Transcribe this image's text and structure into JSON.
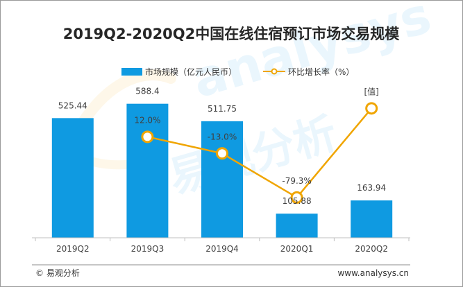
{
  "chart_data": {
    "type": "bar+line",
    "title": "2019Q2-2020Q2中国在线住宿预订市场交易规模",
    "categories": [
      "2019Q2",
      "2019Q3",
      "2019Q4",
      "2020Q1",
      "2020Q2"
    ],
    "series": [
      {
        "name": "市场规模（亿元人民币）",
        "type": "bar",
        "axis": "left",
        "values": [
          525.44,
          588.4,
          511.75,
          105.88,
          163.94
        ],
        "labels": [
          "525.44",
          "588.4",
          "511.75",
          "105.88",
          "163.94"
        ],
        "color": "#0f9ae1"
      },
      {
        "name": "环比增长率（%）",
        "type": "line",
        "axis": "right",
        "values": [
          null,
          12.0,
          -13.0,
          -79.3,
          54.8
        ],
        "labels": [
          "",
          "12.0%",
          "-13.0%",
          "-79.3%",
          "[值]"
        ],
        "color": "#f0a500"
      }
    ],
    "left_axis": {
      "min": 0,
      "max": 700
    },
    "right_axis": {
      "min": -140,
      "max": 100
    },
    "grid": false,
    "legend": "top-center"
  },
  "footer": {
    "source": "© 易观分析",
    "website": "www.analysys.cn"
  },
  "watermark": "analysys 易观分析"
}
